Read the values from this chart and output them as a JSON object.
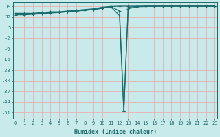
{
  "xlabel": "Humidex (Indice chaleur)",
  "bg_color": "#c8eaea",
  "grid_color": "#e8b0b0",
  "line_color": "#1a6b6b",
  "yticks": [
    19,
    12,
    5,
    -2,
    -9,
    -16,
    -23,
    -30,
    -37,
    -44,
    -51
  ],
  "xticks": [
    0,
    1,
    2,
    3,
    4,
    5,
    6,
    7,
    8,
    9,
    10,
    11,
    12,
    13,
    14,
    15,
    16,
    17,
    18,
    19,
    20,
    21,
    22,
    23
  ],
  "xlim": [
    -0.3,
    23.3
  ],
  "ylim": [
    -55,
    22
  ],
  "line1_x": [
    0,
    1,
    2,
    3,
    4,
    5,
    6,
    7,
    8,
    9,
    10,
    11,
    12,
    13,
    14,
    15,
    16,
    17,
    18,
    19,
    20,
    21,
    22,
    23
  ],
  "line1_y": [
    14.5,
    14.5,
    14.5,
    15.0,
    15.5,
    15.5,
    16.0,
    16.5,
    17.0,
    17.5,
    18.5,
    19.0,
    19.2,
    19.2,
    19.2,
    19.2,
    19.2,
    19.2,
    19.2,
    19.2,
    19.2,
    19.2,
    19.2,
    19.2
  ],
  "line2_x": [
    0,
    1,
    2,
    3,
    4,
    5,
    6,
    7,
    8,
    9,
    10,
    11,
    12,
    12.5,
    13,
    14,
    15,
    16,
    17,
    18,
    19,
    20,
    21,
    22,
    23
  ],
  "line2_y": [
    14.0,
    14.0,
    14.2,
    14.5,
    15.0,
    15.2,
    15.5,
    16.0,
    16.5,
    17.0,
    18.0,
    19.0,
    16.0,
    -50.0,
    18.5,
    19.0,
    19.2,
    19.2,
    19.2,
    19.2,
    19.2,
    19.2,
    19.2,
    19.2,
    19.2
  ],
  "line3_x": [
    0,
    1,
    2,
    3,
    4,
    5,
    6,
    7,
    8,
    9,
    10,
    11,
    12,
    12.5,
    13,
    14,
    15,
    16,
    17,
    18,
    19,
    20,
    21,
    22,
    23
  ],
  "line3_y": [
    13.5,
    13.5,
    13.8,
    14.2,
    14.7,
    15.0,
    15.5,
    16.0,
    16.5,
    17.0,
    17.8,
    18.8,
    13.0,
    -50.0,
    17.5,
    18.8,
    19.0,
    19.2,
    19.2,
    19.2,
    19.2,
    19.2,
    19.2,
    19.2,
    19.2
  ],
  "marker": "+",
  "markersize": 3,
  "linewidth": 0.9
}
